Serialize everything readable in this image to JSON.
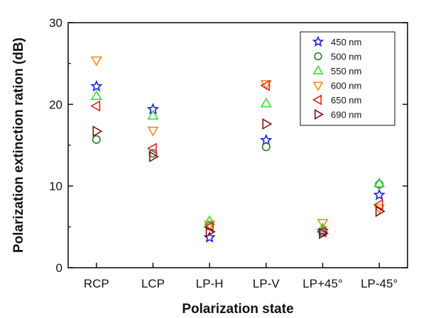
{
  "chart_data": {
    "type": "scatter",
    "title": "",
    "xlabel": "Polarization state",
    "ylabel": "Polarization extinction ration (dB)",
    "categories": [
      "RCP",
      "LCP",
      "LP-H",
      "LP-V",
      "LP+45°",
      "LP-45°"
    ],
    "ylim": [
      0,
      30
    ],
    "yticks": [
      0,
      10,
      20,
      30
    ],
    "grid": false,
    "legend_position": "top-right",
    "series": [
      {
        "name": "450 nm",
        "marker": "star",
        "color": "#1f1fd6",
        "values": [
          22.2,
          19.4,
          3.7,
          15.6,
          4.5,
          8.9
        ]
      },
      {
        "name": "500 nm",
        "marker": "circle",
        "color": "#2a7a2a",
        "values": [
          15.7,
          14.0,
          5.1,
          14.8,
          4.3,
          10.2
        ]
      },
      {
        "name": "550 nm",
        "marker": "triangle-up",
        "color": "#33e033",
        "values": [
          21.0,
          18.6,
          5.7,
          20.1,
          4.8,
          10.3
        ]
      },
      {
        "name": "600 nm",
        "marker": "triangle-down",
        "color": "#f08a1c",
        "values": [
          25.4,
          16.8,
          5.3,
          22.5,
          5.5,
          7.3
        ]
      },
      {
        "name": "650 nm",
        "marker": "triangle-left",
        "color": "#e02020",
        "values": [
          19.8,
          14.6,
          5.0,
          22.3,
          4.4,
          7.7
        ]
      },
      {
        "name": "690 nm",
        "marker": "triangle-right",
        "color": "#7a1010",
        "values": [
          16.7,
          13.6,
          4.4,
          17.6,
          4.2,
          6.9
        ]
      }
    ]
  }
}
